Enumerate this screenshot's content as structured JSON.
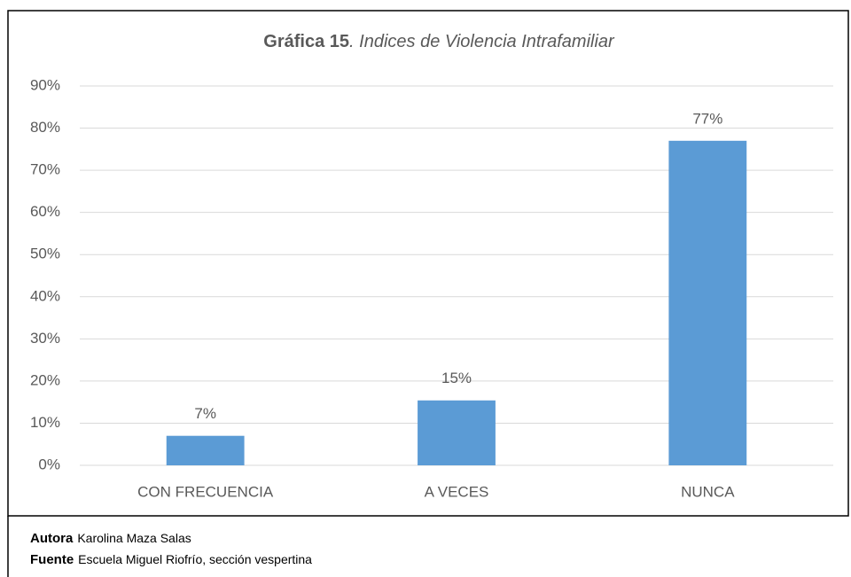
{
  "chart_data": {
    "type": "bar",
    "title_bold": "Gráfica 15",
    "title_rest": ". Indices de Violencia Intrafamiliar",
    "categories": [
      "CON FRECUENCIA",
      "A VECES",
      "NUNCA"
    ],
    "values": [
      7,
      15.4,
      77
    ],
    "value_labels": [
      "7%",
      "15%",
      "77%"
    ],
    "color": "#5b9bd5",
    "ylim": [
      0,
      90
    ],
    "yticks": [
      {
        "value": 0,
        "label": "0%"
      },
      {
        "value": 10,
        "label": "10%"
      },
      {
        "value": 20,
        "label": "20%"
      },
      {
        "value": 30,
        "label": "30%"
      },
      {
        "value": 40,
        "label": "40%"
      },
      {
        "value": 50,
        "label": "50%"
      },
      {
        "value": 60,
        "label": "60%"
      },
      {
        "value": 70,
        "label": "70%"
      },
      {
        "value": 80,
        "label": "80%"
      },
      {
        "value": 90,
        "label": "90%"
      }
    ],
    "grid": true
  },
  "footer": {
    "author_label": "Autora",
    "author": "Karolina Maza Salas",
    "source_label": "Fuente",
    "source": "Escuela Miguel Riofrío, sección vespertina"
  }
}
